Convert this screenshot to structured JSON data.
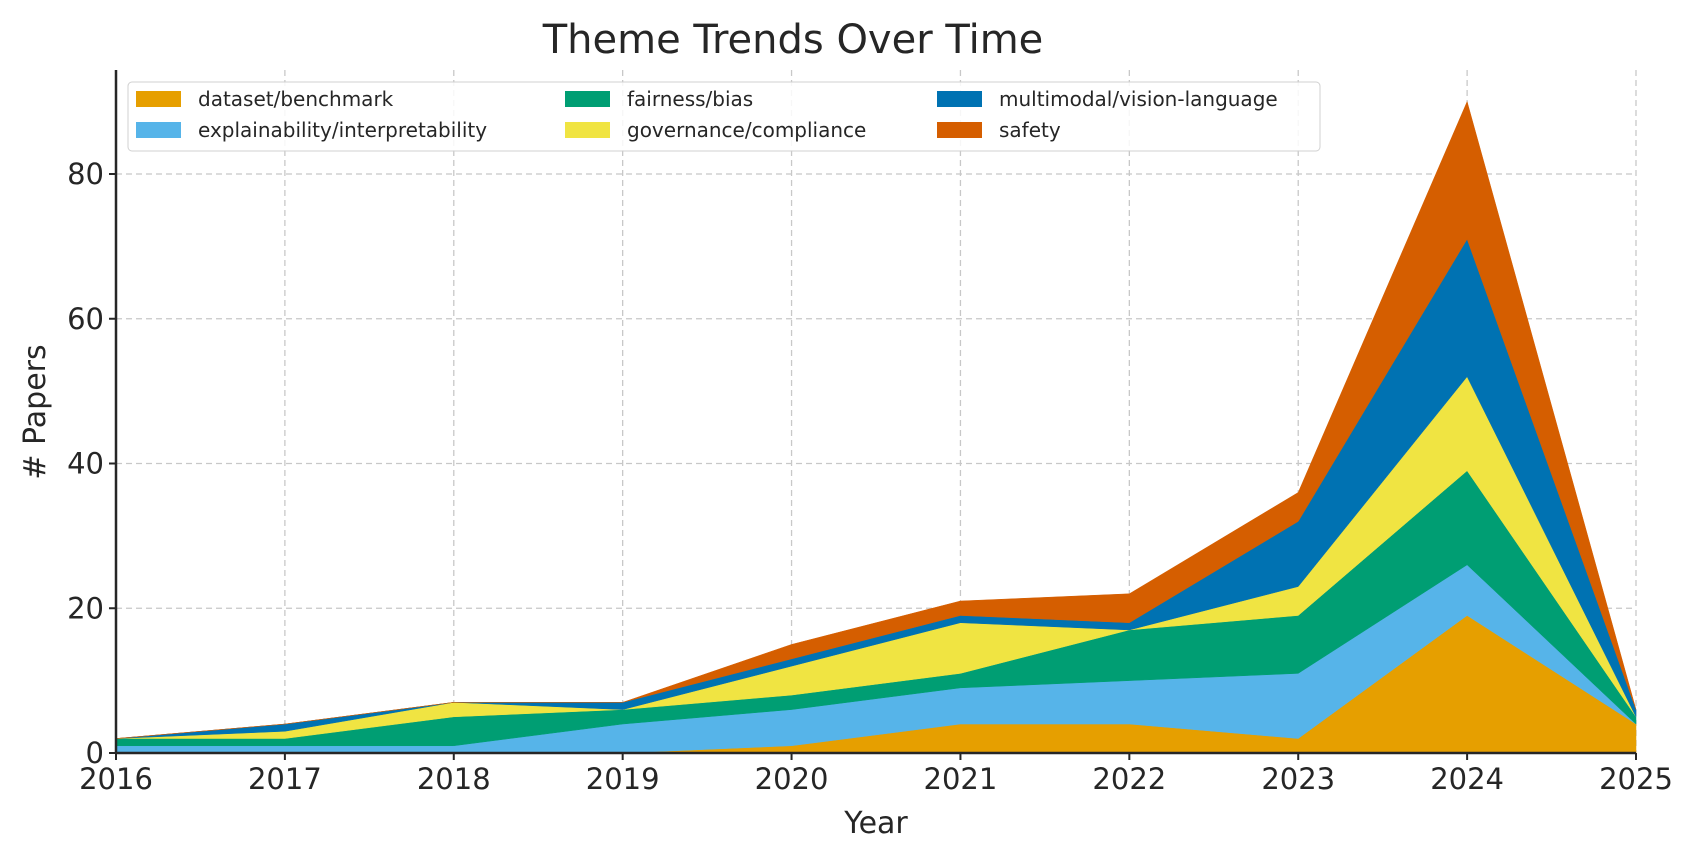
{
  "chart_data": {
    "type": "area",
    "stacked": true,
    "title": "Theme Trends Over Time",
    "xlabel": "Year",
    "ylabel": "# Papers",
    "x": [
      2016,
      2017,
      2018,
      2019,
      2020,
      2021,
      2022,
      2023,
      2024,
      2025
    ],
    "xlim": [
      2016,
      2025
    ],
    "ylim": [
      0,
      94
    ],
    "yticks": [
      0,
      20,
      40,
      60,
      80
    ],
    "grid": true,
    "legend_position": "top-left",
    "series": [
      {
        "name": "dataset/benchmark",
        "color": "#E69F00",
        "values": [
          0,
          0,
          0,
          0,
          1,
          4,
          4,
          2,
          19,
          4
        ]
      },
      {
        "name": "explainability/interpretability",
        "color": "#56B4E9",
        "values": [
          1,
          1,
          1,
          4,
          5,
          5,
          6,
          9,
          7,
          0
        ]
      },
      {
        "name": "fairness/bias",
        "color": "#009E73",
        "values": [
          1,
          1,
          4,
          2,
          2,
          2,
          7,
          8,
          13,
          1
        ]
      },
      {
        "name": "governance/compliance",
        "color": "#F0E442",
        "values": [
          0,
          1,
          2,
          0,
          4,
          7,
          0,
          4,
          13,
          0
        ]
      },
      {
        "name": "multimodal/vision-language",
        "color": "#0072B2",
        "values": [
          0,
          1,
          0,
          1,
          1,
          1,
          1,
          9,
          19,
          1
        ]
      },
      {
        "name": "safety",
        "color": "#D55E00",
        "values": [
          0,
          0,
          0,
          0,
          2,
          2,
          4,
          4,
          19,
          0
        ]
      }
    ]
  }
}
